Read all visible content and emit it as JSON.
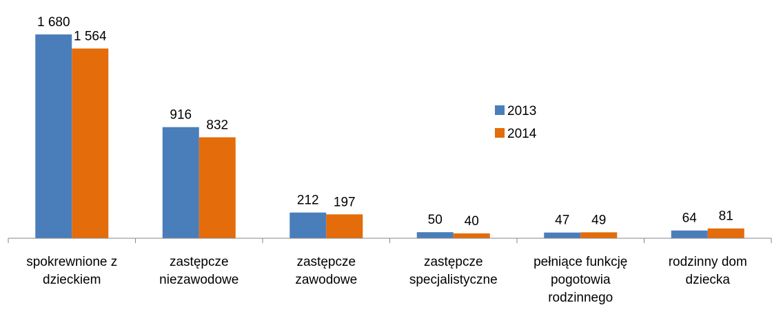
{
  "chart_data": {
    "type": "bar",
    "categories": [
      "spokrewnione z dzieckiem",
      "zastępcze niezawodowe",
      "zastępcze zawodowe",
      "zastępcze specjalistyczne",
      "pełniące funkcję pogotowia rodzinnego",
      "rodzinny dom dziecka"
    ],
    "series": [
      {
        "name": "2013",
        "color": "#4a7ebb",
        "values": [
          1680,
          916,
          212,
          50,
          47,
          64
        ],
        "value_labels": [
          "1 680",
          "916",
          "212",
          "50",
          "47",
          "64"
        ]
      },
      {
        "name": "2014",
        "color": "#e46c0a",
        "values": [
          1564,
          832,
          197,
          40,
          49,
          81
        ],
        "value_labels": [
          "1 564",
          "832",
          "197",
          "40",
          "49",
          "81"
        ]
      }
    ],
    "ylim": [
      0,
      1680
    ],
    "legend": "center"
  }
}
